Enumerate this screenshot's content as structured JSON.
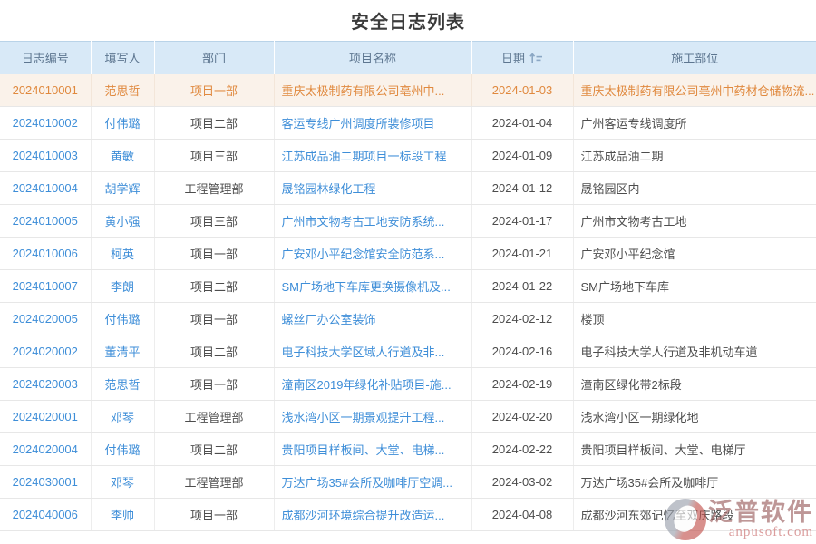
{
  "page": {
    "title": "安全日志列表"
  },
  "icons": {
    "date_sort": "sort-ascending-icon"
  },
  "colors": {
    "header_bg": "#d8e9f7",
    "header_text": "#5d7690",
    "link_blue": "#3e8ed8",
    "highlight_bg": "#faf2ea",
    "highlight_text": "#e0893e",
    "body_text": "#4d4d4d",
    "row_border": "#e7e7e7",
    "watermark_red": "#a06767"
  },
  "watermark": {
    "brand": "泛普软件",
    "url": "anpusoft.com"
  },
  "table": {
    "columns": [
      {
        "key": "log-id",
        "label": "日志编号"
      },
      {
        "key": "filler",
        "label": "填写人"
      },
      {
        "key": "department",
        "label": "部门"
      },
      {
        "key": "project-name",
        "label": "项目名称"
      },
      {
        "key": "date",
        "label": "日期",
        "sortable": true
      },
      {
        "key": "location",
        "label": "施工部位"
      }
    ],
    "link_columns": [
      0,
      1,
      3
    ],
    "left_aligned_columns": [
      3,
      5
    ],
    "highlighted_row_index": 0,
    "rows": [
      [
        "2024010001",
        "范思哲",
        "项目一部",
        "重庆太极制药有限公司亳州中...",
        "2024-01-03",
        "重庆太极制药有限公司亳州中药材仓储物流..."
      ],
      [
        "2024010002",
        "付伟璐",
        "项目二部",
        "客运专线广州调度所装修项目",
        "2024-01-04",
        "广州客运专线调度所"
      ],
      [
        "2024010003",
        "黄敏",
        "项目三部",
        "江苏成品油二期项目一标段工程",
        "2024-01-09",
        "江苏成品油二期"
      ],
      [
        "2024010004",
        "胡学辉",
        "工程管理部",
        "晟铭园林绿化工程",
        "2024-01-12",
        "晟铭园区内"
      ],
      [
        "2024010005",
        "黄小强",
        "项目三部",
        "广州市文物考古工地安防系统...",
        "2024-01-17",
        "广州市文物考古工地"
      ],
      [
        "2024010006",
        "柯英",
        "项目一部",
        "广安邓小平纪念馆安全防范系...",
        "2024-01-21",
        "广安邓小平纪念馆"
      ],
      [
        "2024010007",
        "李朗",
        "项目二部",
        "SM广场地下车库更换摄像机及...",
        "2024-01-22",
        "SM广场地下车库"
      ],
      [
        "2024020005",
        "付伟璐",
        "项目一部",
        "螺丝厂办公室装饰",
        "2024-02-12",
        "楼顶"
      ],
      [
        "2024020002",
        "董清平",
        "项目二部",
        "电子科技大学区域人行道及非...",
        "2024-02-16",
        "电子科技大学人行道及非机动车道"
      ],
      [
        "2024020003",
        "范思哲",
        "项目一部",
        "潼南区2019年绿化补贴项目-施...",
        "2024-02-19",
        "潼南区绿化带2标段"
      ],
      [
        "2024020001",
        "邓琴",
        "工程管理部",
        "浅水湾小区一期景观提升工程...",
        "2024-02-20",
        "浅水湾小区一期绿化地"
      ],
      [
        "2024020004",
        "付伟璐",
        "项目二部",
        "贵阳项目样板间、大堂、电梯...",
        "2024-02-22",
        "贵阳项目样板间、大堂、电梯厅"
      ],
      [
        "2024030001",
        "邓琴",
        "工程管理部",
        "万达广场35#会所及咖啡厅空调...",
        "2024-03-02",
        "万达广场35#会所及咖啡厅"
      ],
      [
        "2024040006",
        "李帅",
        "项目一部",
        "成都沙河环境综合提升改造运...",
        "2024-04-08",
        "成都沙河东郊记忆至双庆路段"
      ]
    ]
  }
}
